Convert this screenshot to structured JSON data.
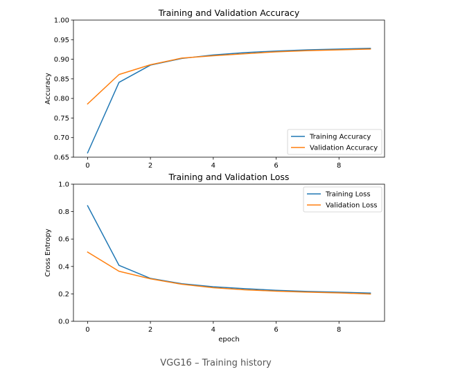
{
  "caption": "VGG16 – Training history",
  "colors": {
    "training": "#1f77b4",
    "validation": "#ff7f0e"
  },
  "chart_data": [
    {
      "type": "line",
      "title": "Training and Validation Accuracy",
      "xlabel": "",
      "ylabel": "Accuracy",
      "xlim": [
        -0.45,
        9.45
      ],
      "ylim": [
        0.65,
        1.0
      ],
      "xticks": [
        0,
        2,
        4,
        6,
        8
      ],
      "xtick_labels": [
        "0",
        "2",
        "4",
        "6",
        "8"
      ],
      "yticks": [
        0.65,
        0.7,
        0.75,
        0.8,
        0.85,
        0.9,
        0.95,
        1.0
      ],
      "ytick_labels": [
        "0.65",
        "0.70",
        "0.75",
        "0.80",
        "0.85",
        "0.90",
        "0.95",
        "1.00"
      ],
      "legend_position": "lower-right",
      "x": [
        0,
        1,
        2,
        3,
        4,
        5,
        6,
        7,
        8,
        9
      ],
      "series": [
        {
          "name": "Training Accuracy",
          "color": "#1f77b4",
          "values": [
            0.661,
            0.841,
            0.885,
            0.902,
            0.911,
            0.917,
            0.921,
            0.924,
            0.926,
            0.928
          ]
        },
        {
          "name": "Validation Accuracy",
          "color": "#ff7f0e",
          "values": [
            0.786,
            0.861,
            0.886,
            0.903,
            0.909,
            0.914,
            0.919,
            0.922,
            0.924,
            0.926
          ]
        }
      ]
    },
    {
      "type": "line",
      "title": "Training and Validation Loss",
      "xlabel": "epoch",
      "ylabel": "Cross Entropy",
      "xlim": [
        -0.45,
        9.45
      ],
      "ylim": [
        0.0,
        1.0
      ],
      "xticks": [
        0,
        2,
        4,
        6,
        8
      ],
      "xtick_labels": [
        "0",
        "2",
        "4",
        "6",
        "8"
      ],
      "yticks": [
        0.0,
        0.2,
        0.4,
        0.6,
        0.8,
        1.0
      ],
      "ytick_labels": [
        "0.0",
        "0.2",
        "0.4",
        "0.6",
        "0.8",
        "1.0"
      ],
      "legend_position": "upper-right",
      "x": [
        0,
        1,
        2,
        3,
        4,
        5,
        6,
        7,
        8,
        9
      ],
      "series": [
        {
          "name": "Training Loss",
          "color": "#1f77b4",
          "values": [
            0.843,
            0.408,
            0.313,
            0.274,
            0.252,
            0.238,
            0.226,
            0.218,
            0.212,
            0.206
          ]
        },
        {
          "name": "Validation Loss",
          "color": "#ff7f0e",
          "values": [
            0.505,
            0.365,
            0.31,
            0.27,
            0.245,
            0.23,
            0.22,
            0.213,
            0.207,
            0.199
          ]
        }
      ]
    }
  ]
}
